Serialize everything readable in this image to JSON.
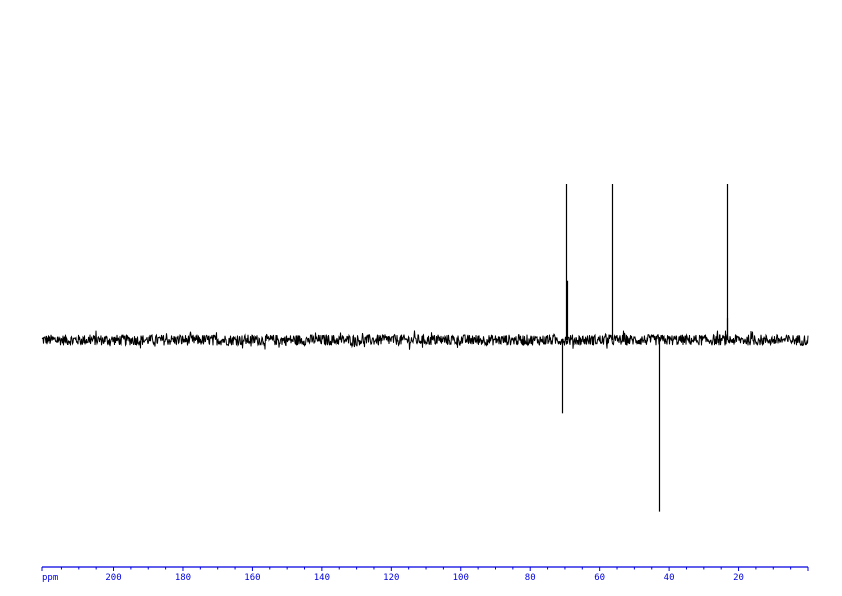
{
  "chart_data": {
    "type": "line",
    "title": "",
    "xlabel": "ppm",
    "ylabel": "",
    "x_reversed": true,
    "xlim": [
      220.6,
      0
    ],
    "ylim": [
      -1.2,
      1.0
    ],
    "grid": false,
    "axis_color": "#0000e0",
    "trace_color": "#000000",
    "x_tick_labels": [
      "200",
      "180",
      "160",
      "140",
      "120",
      "100",
      "80",
      "60",
      "40",
      "20"
    ],
    "x_major_ticks": [
      200,
      180,
      160,
      140,
      120,
      100,
      80,
      60,
      40,
      20
    ],
    "x_minor_tick_step": 5,
    "noise_amplitude": 0.035,
    "peaks": [
      {
        "ppm": 69.8,
        "intensity": 1.0
      },
      {
        "ppm": 69.5,
        "intensity": 0.38
      },
      {
        "ppm": 56.5,
        "intensity": 1.0
      },
      {
        "ppm": 23.4,
        "intensity": 1.0
      },
      {
        "ppm": 23.2,
        "intensity": 0.14
      },
      {
        "ppm": 70.9,
        "intensity": -0.47
      },
      {
        "ppm": 43.0,
        "intensity": -1.1
      }
    ]
  }
}
